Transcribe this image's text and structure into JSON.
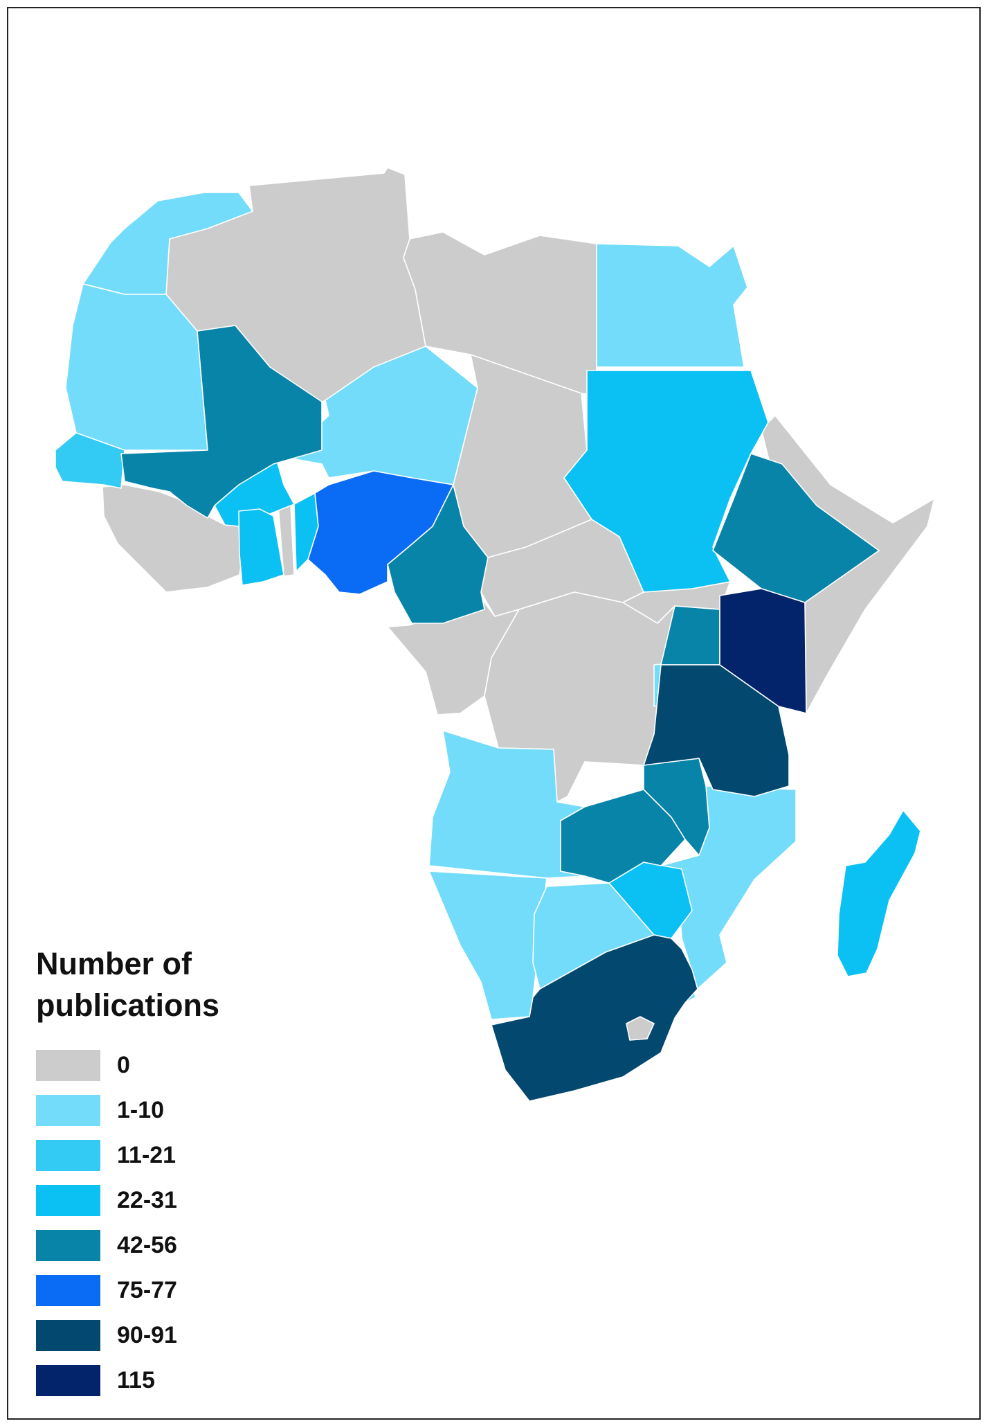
{
  "legend": {
    "title": "Number of publications",
    "classes": [
      {
        "label": "0",
        "color": "#cccccc"
      },
      {
        "label": "1-10",
        "color": "#72dcfa"
      },
      {
        "label": "11-21",
        "color": "#33cbf4"
      },
      {
        "label": "22-31",
        "color": "#0bc0f2"
      },
      {
        "label": "42-56",
        "color": "#0784a8"
      },
      {
        "label": "75-77",
        "color": "#0a6cf5"
      },
      {
        "label": "90-91",
        "color": "#03486f"
      },
      {
        "label": "115",
        "color": "#03246a"
      }
    ]
  },
  "map_regions": [
    {
      "name": "Morocco / W. Sahara",
      "class": "1-10"
    },
    {
      "name": "Mauritania",
      "class": "1-10"
    },
    {
      "name": "Senegal",
      "class": "11-21"
    },
    {
      "name": "Mali",
      "class": "42-56"
    },
    {
      "name": "Niger",
      "class": "1-10"
    },
    {
      "name": "Burkina Faso",
      "class": "22-31"
    },
    {
      "name": "Ghana",
      "class": "22-31"
    },
    {
      "name": "Benin",
      "class": "22-31"
    },
    {
      "name": "Nigeria",
      "class": "75-77"
    },
    {
      "name": "Cameroon",
      "class": "42-56"
    },
    {
      "name": "Egypt",
      "class": "1-10"
    },
    {
      "name": "Sudan",
      "class": "22-31"
    },
    {
      "name": "Ethiopia",
      "class": "42-56"
    },
    {
      "name": "Kenya",
      "class": "115"
    },
    {
      "name": "Uganda",
      "class": "42-56"
    },
    {
      "name": "Rwanda / Burundi",
      "class": "1-10"
    },
    {
      "name": "Tanzania",
      "class": "90-91"
    },
    {
      "name": "Malawi",
      "class": "42-56"
    },
    {
      "name": "Zambia",
      "class": "42-56"
    },
    {
      "name": "Mozambique",
      "class": "1-10"
    },
    {
      "name": "Zimbabwe",
      "class": "22-31"
    },
    {
      "name": "Angola",
      "class": "1-10"
    },
    {
      "name": "Namibia",
      "class": "1-10"
    },
    {
      "name": "Botswana",
      "class": "1-10"
    },
    {
      "name": "South Africa",
      "class": "90-91"
    },
    {
      "name": "Swaziland",
      "class": "1-10"
    },
    {
      "name": "Madagascar",
      "class": "22-31"
    },
    {
      "name": "Algeria / Tunisia",
      "class": "0"
    },
    {
      "name": "Libya",
      "class": "0"
    },
    {
      "name": "Chad",
      "class": "0"
    },
    {
      "name": "Central African Republic",
      "class": "0"
    },
    {
      "name": "South Sudan",
      "class": "0"
    },
    {
      "name": "Horn of Africa",
      "class": "0"
    },
    {
      "name": "Guinea / Sierra Leone / Liberia / Ivory Coast",
      "class": "0"
    },
    {
      "name": "Gabon / Congo",
      "class": "0"
    },
    {
      "name": "DR Congo",
      "class": "0"
    },
    {
      "name": "Lesotho",
      "class": "0"
    }
  ]
}
